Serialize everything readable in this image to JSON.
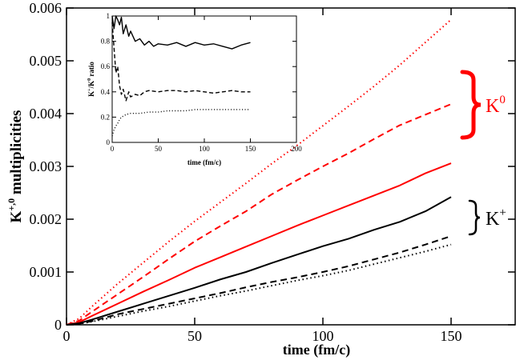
{
  "chart_data": [
    {
      "type": "line",
      "xlabel": "time (fm/c)",
      "ylabel": "K⁺⁰ multiplicities",
      "ylabel_base": "K",
      "ylabel_sup": "+,0",
      "ylabel_rest": " multiplicities",
      "xlim": [
        0,
        175
      ],
      "ylim": [
        0,
        0.006
      ],
      "xticks": [
        "0",
        "50",
        "100",
        "150"
      ],
      "yticks": [
        "0",
        "0.001",
        "0.002",
        "0.003",
        "0.004",
        "0.005",
        "0.006"
      ],
      "grid": false,
      "colors": {
        "k0": "#ff0000",
        "kplus": "#000000"
      },
      "groups": [
        {
          "label_base": "K",
          "label_sup": "0",
          "color": "#ff0000"
        },
        {
          "label_base": "K",
          "label_sup": "+",
          "color": "#000000"
        }
      ],
      "series": [
        {
          "group": "K0",
          "style": "dotted",
          "color": "#ff0000",
          "x": [
            0,
            5,
            10,
            20,
            30,
            40,
            50,
            60,
            70,
            80,
            90,
            100,
            110,
            120,
            130,
            140,
            150
          ],
          "y": [
            0,
            0.00012,
            0.00035,
            0.00078,
            0.00118,
            0.00158,
            0.00196,
            0.00232,
            0.00268,
            0.00305,
            0.0034,
            0.00377,
            0.00414,
            0.00452,
            0.00492,
            0.00535,
            0.00578
          ]
        },
        {
          "group": "K0",
          "style": "dashed",
          "color": "#ff0000",
          "x": [
            0,
            5,
            10,
            20,
            30,
            40,
            50,
            60,
            70,
            80,
            90,
            100,
            110,
            120,
            130,
            140,
            150
          ],
          "y": [
            0,
            8e-05,
            0.00025,
            0.00058,
            0.00091,
            0.00125,
            0.00158,
            0.00187,
            0.00215,
            0.00247,
            0.00274,
            0.003,
            0.00325,
            0.00352,
            0.00378,
            0.00398,
            0.00418
          ]
        },
        {
          "group": "K0",
          "style": "solid",
          "color": "#ff0000",
          "x": [
            0,
            5,
            10,
            20,
            30,
            40,
            50,
            60,
            70,
            80,
            90,
            100,
            110,
            120,
            130,
            140,
            150
          ],
          "y": [
            0,
            5e-05,
            0.00017,
            0.0004,
            0.00063,
            0.00085,
            0.00108,
            0.00128,
            0.00148,
            0.00168,
            0.00188,
            0.00207,
            0.00226,
            0.00245,
            0.00264,
            0.00287,
            0.00306
          ]
        },
        {
          "group": "K+",
          "style": "solid",
          "color": "#000000",
          "x": [
            0,
            5,
            10,
            20,
            30,
            40,
            50,
            60,
            70,
            80,
            90,
            100,
            110,
            120,
            130,
            140,
            150
          ],
          "y": [
            0,
            3e-05,
            0.0001,
            0.00025,
            0.0004,
            0.00055,
            0.0007,
            0.00086,
            0.001,
            0.00117,
            0.00133,
            0.00149,
            0.00163,
            0.0018,
            0.00195,
            0.00215,
            0.00242
          ]
        },
        {
          "group": "K+",
          "style": "dashed",
          "color": "#000000",
          "x": [
            0,
            5,
            10,
            20,
            30,
            40,
            50,
            60,
            70,
            80,
            90,
            100,
            110,
            120,
            130,
            140,
            150
          ],
          "y": [
            0,
            2e-05,
            7e-05,
            0.0002,
            0.0003,
            0.0004,
            0.0005,
            0.0006,
            0.00071,
            0.00081,
            0.0009,
            0.001,
            0.00111,
            0.00124,
            0.00137,
            0.00152,
            0.00168
          ]
        },
        {
          "group": "K+",
          "style": "dotted",
          "color": "#000000",
          "x": [
            0,
            5,
            10,
            20,
            30,
            40,
            50,
            60,
            70,
            80,
            90,
            100,
            110,
            120,
            130,
            140,
            150
          ],
          "y": [
            0,
            2e-05,
            6e-05,
            0.00016,
            0.00026,
            0.00035,
            0.00045,
            0.00055,
            0.00064,
            0.00074,
            0.00084,
            0.00093,
            0.00103,
            0.00115,
            0.00127,
            0.00139,
            0.00152
          ]
        }
      ]
    },
    {
      "type": "line",
      "placement": "inset-top-left",
      "xlabel": "time (fm/c)",
      "ylabel": "K⁺/K⁰ ratio",
      "ylabel_parts": [
        "K",
        "+",
        "/K",
        "0",
        " ratio"
      ],
      "xlim": [
        0,
        200
      ],
      "ylim": [
        0,
        1
      ],
      "xticks": [
        "0",
        "50",
        "100",
        "150",
        "200"
      ],
      "yticks": [
        "0",
        "0.2",
        "0.4",
        "0.6",
        "0.8",
        "1"
      ],
      "grid": false,
      "series": [
        {
          "style": "solid",
          "color": "#000000",
          "x": [
            0,
            2,
            4,
            6,
            8,
            10,
            12,
            15,
            18,
            20,
            25,
            30,
            35,
            40,
            45,
            50,
            60,
            70,
            80,
            90,
            100,
            110,
            120,
            130,
            140,
            150
          ],
          "y": [
            1.0,
            0.9,
            1.0,
            0.97,
            0.93,
            0.99,
            0.86,
            0.93,
            0.84,
            0.88,
            0.8,
            0.82,
            0.77,
            0.8,
            0.76,
            0.78,
            0.77,
            0.79,
            0.76,
            0.79,
            0.77,
            0.78,
            0.76,
            0.74,
            0.77,
            0.79
          ]
        },
        {
          "style": "dashed",
          "color": "#000000",
          "x": [
            0,
            2,
            4,
            6,
            8,
            10,
            12,
            15,
            18,
            20,
            25,
            30,
            35,
            40,
            50,
            60,
            70,
            80,
            90,
            100,
            110,
            120,
            130,
            140,
            150
          ],
          "y": [
            0.95,
            0.75,
            0.55,
            0.6,
            0.45,
            0.38,
            0.42,
            0.33,
            0.4,
            0.36,
            0.38,
            0.37,
            0.4,
            0.41,
            0.4,
            0.41,
            0.41,
            0.4,
            0.41,
            0.4,
            0.39,
            0.4,
            0.41,
            0.4,
            0.4
          ]
        },
        {
          "style": "dotted",
          "color": "#000000",
          "x": [
            0,
            2,
            4,
            6,
            8,
            10,
            15,
            20,
            30,
            40,
            50,
            60,
            70,
            80,
            90,
            100,
            110,
            120,
            130,
            140,
            150
          ],
          "y": [
            0.05,
            0.1,
            0.13,
            0.15,
            0.18,
            0.2,
            0.22,
            0.23,
            0.23,
            0.24,
            0.24,
            0.25,
            0.25,
            0.25,
            0.26,
            0.26,
            0.26,
            0.26,
            0.26,
            0.26,
            0.26
          ]
        }
      ]
    }
  ]
}
